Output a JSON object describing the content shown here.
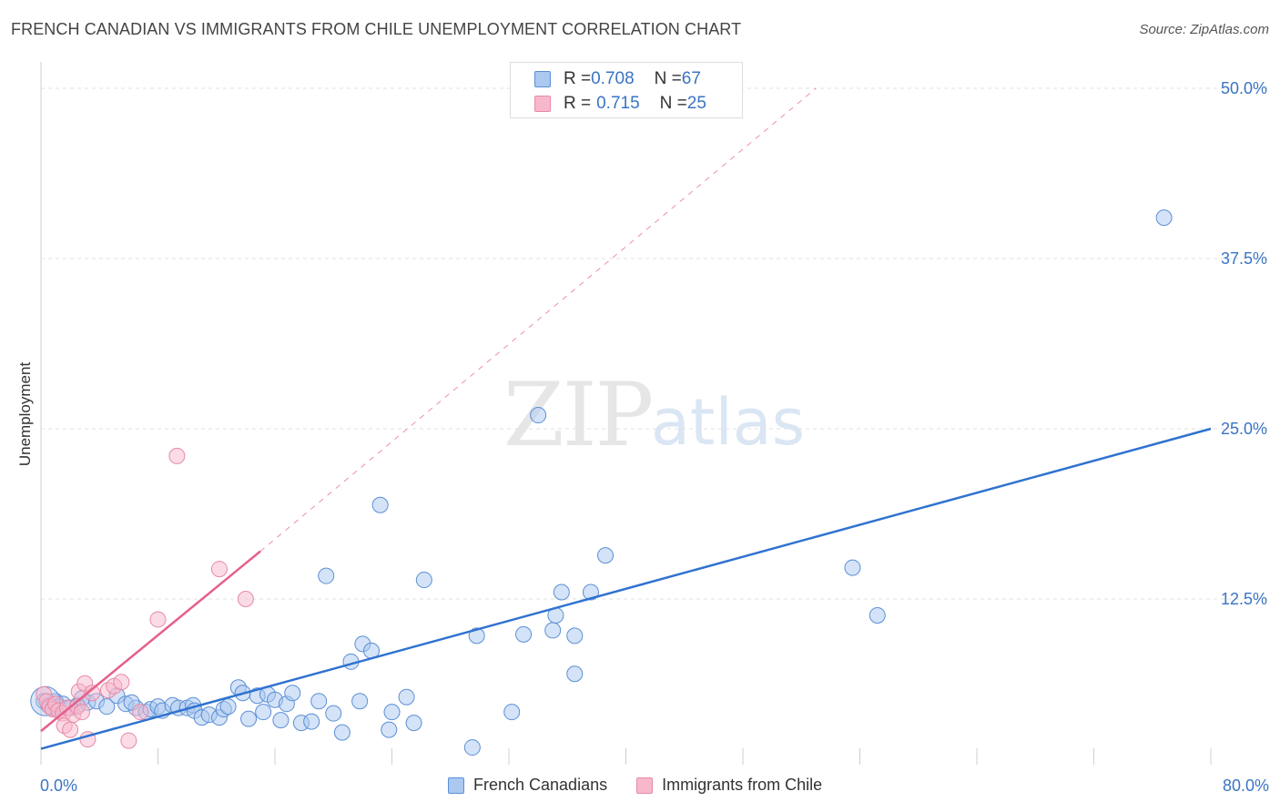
{
  "header": {
    "title": "FRENCH CANADIAN VS IMMIGRANTS FROM CHILE UNEMPLOYMENT CORRELATION CHART",
    "source": "Source: ZipAtlas.com"
  },
  "watermark": {
    "zip": "ZIP",
    "atlas": "atlas"
  },
  "legend": {
    "series1": {
      "r_label": "R = ",
      "r_value": "0.708",
      "n_label": "N = ",
      "n_value": "67"
    },
    "series2": {
      "r_label": "R = ",
      "r_value": "0.715",
      "n_label": "N = ",
      "n_value": "25"
    }
  },
  "bottom_legend": {
    "series1": "French Canadians",
    "series2": "Immigrants from Chile"
  },
  "axis": {
    "x_min_label": "0.0%",
    "x_max_label": "80.0%",
    "y_title": "Unemployment"
  },
  "colors": {
    "blue_fill": "#aac8f0",
    "blue_stroke": "#5b8fd6",
    "blue_line": "#2f72d0",
    "pink_fill": "#f7b8cb",
    "pink_stroke": "#e98aa7",
    "pink_line": "#e5608a",
    "tick_label": "#3a74c4",
    "grid": "#e2e2e2"
  },
  "chart_data": {
    "type": "scatter",
    "title": "FRENCH CANADIAN VS IMMIGRANTS FROM CHILE UNEMPLOYMENT CORRELATION CHART",
    "xlabel": "",
    "ylabel": "Unemployment",
    "xlim": [
      0,
      80
    ],
    "ylim": [
      0,
      52
    ],
    "y_ticks": [
      {
        "value": 12.5,
        "label": "12.5%"
      },
      {
        "value": 25.0,
        "label": "25.0%"
      },
      {
        "value": 37.5,
        "label": "37.5%"
      },
      {
        "value": 50.0,
        "label": "50.0%"
      }
    ],
    "x_ticks": [
      0,
      8,
      16,
      24,
      32,
      40,
      48,
      56,
      64,
      72,
      80
    ],
    "series": [
      {
        "name": "French Canadians",
        "R": 0.708,
        "N": 67,
        "trend": {
          "x": [
            0,
            80
          ],
          "y": [
            1.5,
            25.0
          ],
          "style": "solid"
        },
        "points": [
          [
            0.2,
            5.0
          ],
          [
            0.5,
            4.7
          ],
          [
            0.8,
            4.5
          ],
          [
            1.0,
            5.0
          ],
          [
            1.2,
            4.6
          ],
          [
            1.5,
            4.8
          ],
          [
            2.0,
            4.5
          ],
          [
            2.5,
            4.7
          ],
          [
            2.8,
            5.2
          ],
          [
            3.2,
            4.9
          ],
          [
            3.8,
            5.0
          ],
          [
            4.5,
            4.6
          ],
          [
            5.2,
            5.4
          ],
          [
            5.8,
            4.8
          ],
          [
            6.5,
            4.5
          ],
          [
            6.2,
            4.9
          ],
          [
            7.2,
            4.2
          ],
          [
            7.5,
            4.4
          ],
          [
            8.0,
            4.6
          ],
          [
            8.3,
            4.3
          ],
          [
            9.0,
            4.7
          ],
          [
            9.4,
            4.5
          ],
          [
            10.0,
            4.5
          ],
          [
            10.4,
            4.7
          ],
          [
            10.5,
            4.3
          ],
          [
            11.0,
            3.8
          ],
          [
            11.5,
            4.0
          ],
          [
            12.2,
            3.8
          ],
          [
            12.5,
            4.4
          ],
          [
            12.8,
            4.6
          ],
          [
            13.5,
            6.0
          ],
          [
            13.8,
            5.6
          ],
          [
            14.2,
            3.7
          ],
          [
            14.8,
            5.4
          ],
          [
            15.2,
            4.2
          ],
          [
            15.5,
            5.5
          ],
          [
            16.0,
            5.1
          ],
          [
            16.4,
            3.6
          ],
          [
            16.8,
            4.8
          ],
          [
            17.2,
            5.6
          ],
          [
            17.8,
            3.4
          ],
          [
            18.5,
            3.5
          ],
          [
            19.0,
            5.0
          ],
          [
            19.5,
            14.2
          ],
          [
            20.0,
            4.1
          ],
          [
            20.6,
            2.7
          ],
          [
            21.2,
            7.9
          ],
          [
            21.8,
            5.0
          ],
          [
            22.0,
            9.2
          ],
          [
            22.6,
            8.7
          ],
          [
            23.2,
            19.4
          ],
          [
            23.8,
            2.9
          ],
          [
            24.0,
            4.2
          ],
          [
            25.0,
            5.3
          ],
          [
            25.5,
            3.4
          ],
          [
            26.2,
            13.9
          ],
          [
            29.5,
            1.6
          ],
          [
            29.8,
            9.8
          ],
          [
            32.2,
            4.2
          ],
          [
            33.0,
            9.9
          ],
          [
            34.0,
            26.0
          ],
          [
            35.0,
            10.2
          ],
          [
            35.2,
            11.3
          ],
          [
            35.6,
            13.0
          ],
          [
            36.5,
            9.8
          ],
          [
            36.5,
            7.0
          ],
          [
            37.6,
            13.0
          ],
          [
            38.6,
            15.7
          ],
          [
            55.5,
            14.8
          ],
          [
            57.2,
            11.3
          ],
          [
            76.8,
            40.5
          ]
        ]
      },
      {
        "name": "Immigrants from Chile",
        "R": 0.715,
        "N": 25,
        "trend": {
          "x": [
            0,
            15
          ],
          "y": [
            2.8,
            16.0
          ],
          "style": "solid"
        },
        "trend_extension": {
          "x": [
            15,
            53
          ],
          "y": [
            16.0,
            50.0
          ],
          "style": "dashed"
        },
        "points": [
          [
            0.2,
            5.5
          ],
          [
            0.4,
            5.0
          ],
          [
            0.6,
            4.6
          ],
          [
            0.8,
            4.4
          ],
          [
            1.0,
            4.8
          ],
          [
            1.2,
            4.3
          ],
          [
            1.5,
            4.1
          ],
          [
            1.6,
            3.2
          ],
          [
            1.8,
            4.5
          ],
          [
            2.0,
            2.9
          ],
          [
            2.2,
            4.0
          ],
          [
            2.5,
            4.6
          ],
          [
            2.6,
            5.7
          ],
          [
            2.8,
            4.2
          ],
          [
            3.0,
            6.3
          ],
          [
            3.2,
            2.2
          ],
          [
            3.5,
            5.6
          ],
          [
            4.6,
            5.8
          ],
          [
            5.0,
            6.1
          ],
          [
            5.5,
            6.4
          ],
          [
            6.0,
            2.1
          ],
          [
            6.8,
            4.2
          ],
          [
            8.0,
            11.0
          ],
          [
            9.3,
            23.0
          ],
          [
            12.2,
            14.7
          ],
          [
            14.0,
            12.5
          ]
        ]
      }
    ],
    "legend_position": "top-center"
  }
}
